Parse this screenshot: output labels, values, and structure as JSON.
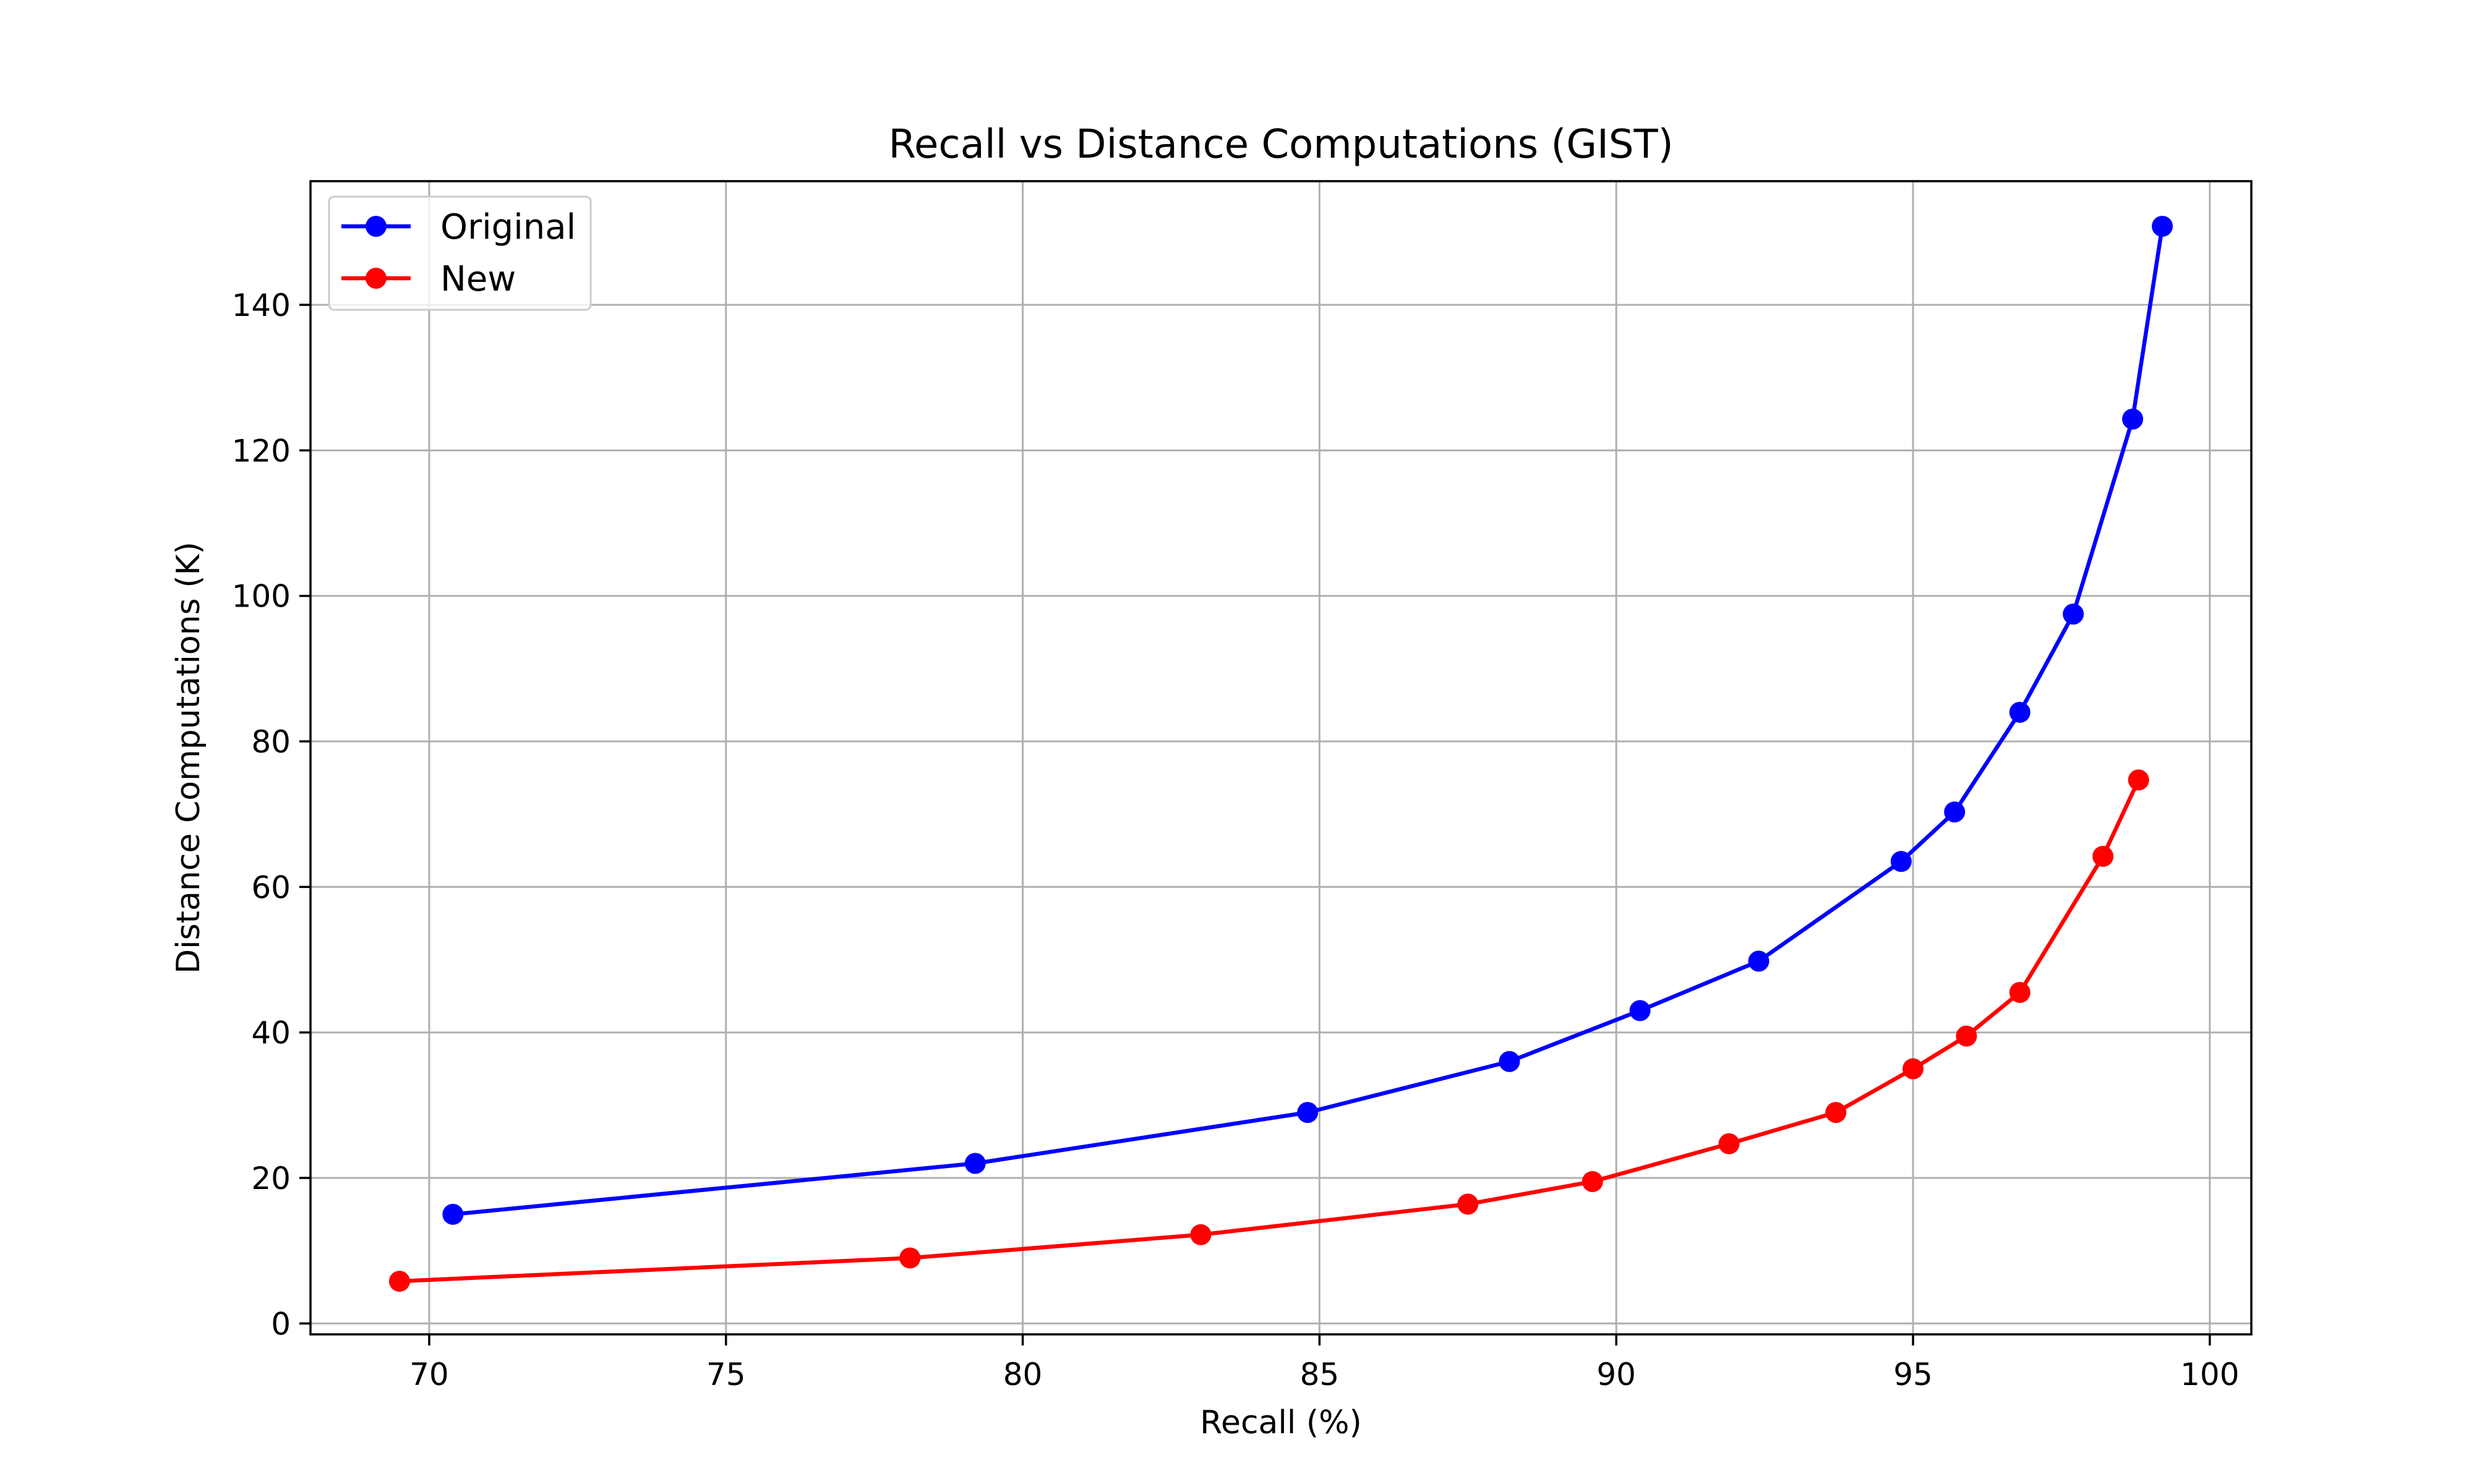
{
  "chart_data": {
    "type": "line",
    "title": "Recall vs Distance Computations (GIST)",
    "xlabel": "Recall (%)",
    "ylabel": "Distance Computations (K)",
    "xlim": [
      68,
      100.7
    ],
    "ylim": [
      -1.5,
      157
    ],
    "xticks": [
      70,
      75,
      80,
      85,
      90,
      95,
      100
    ],
    "yticks": [
      0,
      20,
      40,
      60,
      80,
      100,
      120,
      140
    ],
    "grid": true,
    "legend_position": "top-left",
    "series": [
      {
        "name": "Original",
        "color": "#0000ff",
        "marker": "circle",
        "x": [
          70.4,
          79.2,
          84.8,
          88.2,
          90.4,
          92.4,
          94.8,
          95.7,
          96.8,
          97.7,
          98.7,
          99.2
        ],
        "y": [
          15.0,
          22.0,
          29.0,
          36.0,
          43.0,
          49.8,
          63.5,
          70.3,
          84.0,
          97.5,
          124.3,
          150.8
        ]
      },
      {
        "name": "New",
        "color": "#ff0000",
        "marker": "circle",
        "x": [
          69.5,
          78.1,
          83.0,
          87.5,
          89.6,
          91.9,
          93.7,
          95.0,
          95.9,
          96.8,
          98.2,
          98.8
        ],
        "y": [
          5.8,
          9.0,
          12.2,
          16.4,
          19.5,
          24.7,
          29.0,
          35.0,
          39.5,
          45.5,
          64.2,
          74.7
        ]
      }
    ]
  }
}
